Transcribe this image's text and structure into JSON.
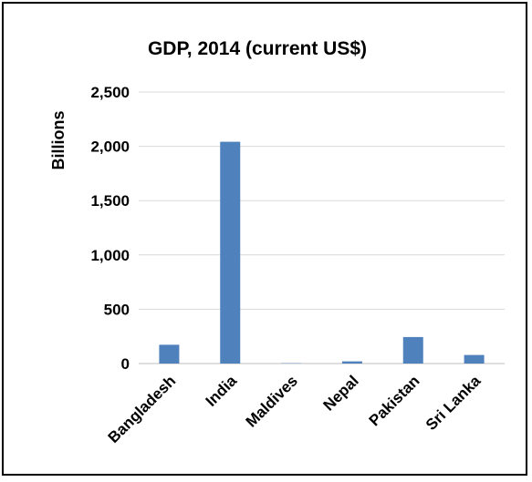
{
  "chart_data": {
    "type": "bar",
    "title": "GDP, 2014 (current US$)",
    "xlabel": "",
    "ylabel": "Billions",
    "categories": [
      "Bangladesh",
      "India",
      "Maldives",
      "Nepal",
      "Pakistan",
      "Sri Lanka"
    ],
    "series": [
      {
        "values": [
          173,
          2042,
          3,
          20,
          244,
          79
        ]
      }
    ],
    "ylim": [
      0,
      2500
    ],
    "yticks": [
      0,
      500,
      1000,
      1500,
      2000,
      2500
    ],
    "ytick_labels": [
      "0",
      "500",
      "1,000",
      "1,500",
      "2,000",
      "2,500"
    ],
    "grid": true,
    "legend": "none",
    "bar_color": "#4F81BD",
    "grid_color": "#D9D9D9"
  }
}
